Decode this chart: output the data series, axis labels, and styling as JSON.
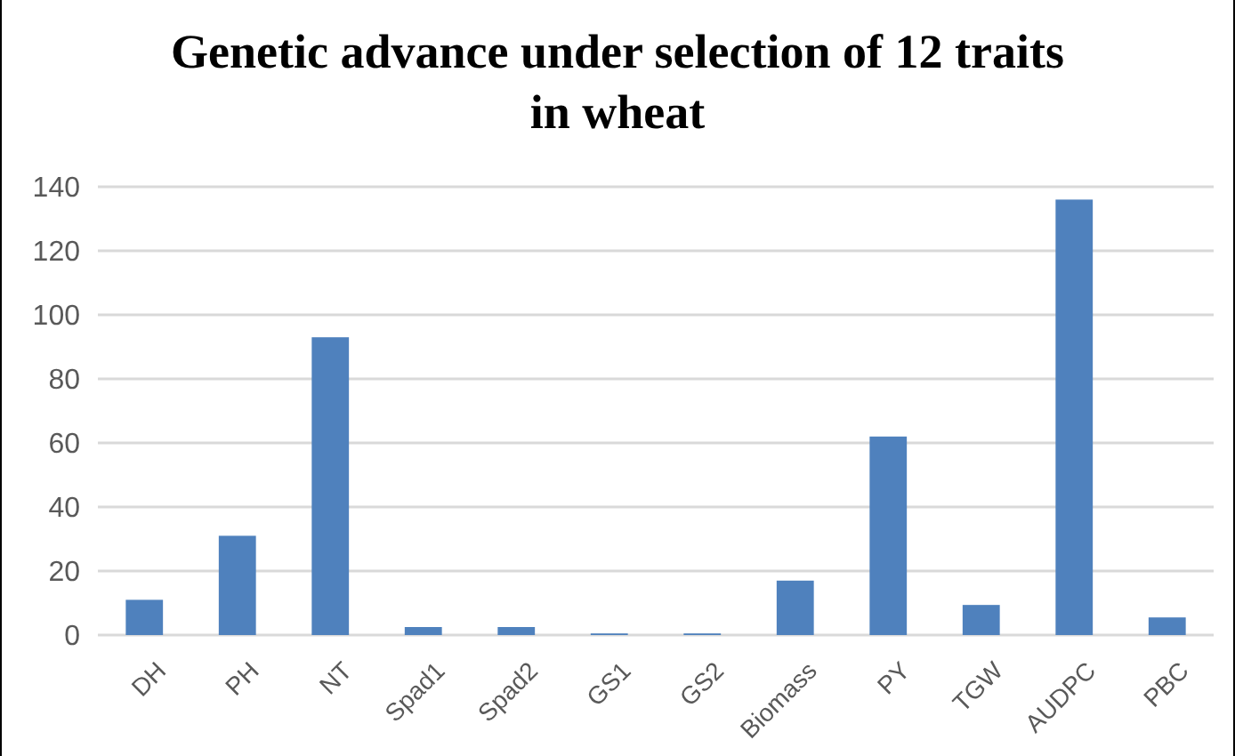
{
  "chart_data": {
    "type": "bar",
    "title": "Genetic advance under selection of 12 traits in wheat",
    "categories": [
      "DH",
      "PH",
      "NT",
      "Spad1",
      "Spad2",
      "GS1",
      "GS2",
      "Biomass",
      "PY",
      "TGW",
      "AUDPC",
      "PBC"
    ],
    "values": [
      11,
      31,
      93,
      2.5,
      2.5,
      0.5,
      0.5,
      17,
      62,
      9.4,
      136,
      5.5
    ],
    "color": "#4f81bd",
    "ylim": [
      0,
      140
    ],
    "yticks": [
      0,
      20,
      40,
      60,
      80,
      100,
      120,
      140
    ],
    "grid": "y"
  }
}
